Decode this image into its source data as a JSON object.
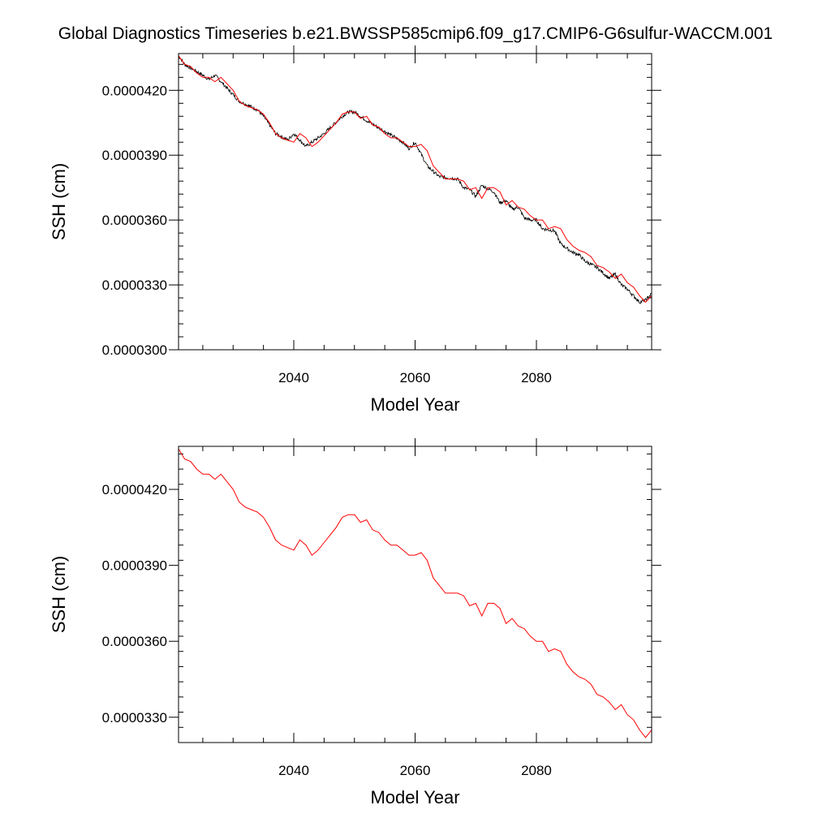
{
  "title": "Global Diagnostics Timeseries b.e21.BWSSP585cmip6.f09_g17.CMIP6-G6sulfur-WACCM.001",
  "colors": {
    "monthly_line": "#000000",
    "annual_line": "#ff0000"
  },
  "chart_data": [
    {
      "type": "line",
      "xlabel": "Model Year",
      "ylabel": "SSH (cm)",
      "xlim": [
        2021,
        2099
      ],
      "ylim": [
        3e-05,
        4.37e-05
      ],
      "xticks": [
        2040,
        2060,
        2080
      ],
      "xtick_labels": [
        "2040",
        "2060",
        "2080"
      ],
      "yticks": [
        3e-05,
        3.3e-05,
        3.6e-05,
        3.9e-05,
        4.2e-05
      ],
      "ytick_labels": [
        "0.0000300",
        "0.0000330",
        "0.0000360",
        "0.0000390",
        "0.0000420"
      ],
      "grid": false,
      "series": [
        {
          "kind": "monthly",
          "x_start": 2021,
          "x_step": 0.0833333,
          "noise_amplitude": 8e-08,
          "trend_x": [
            2021,
            2022,
            2025,
            2026,
            2027,
            2029,
            2031,
            2034,
            2035,
            2037,
            2039,
            2040,
            2042,
            2045,
            2048,
            2049,
            2050,
            2052,
            2055,
            2058,
            2059,
            2060,
            2062,
            2064,
            2067,
            2068,
            2069,
            2070,
            2071,
            2073,
            2074,
            2075,
            2076,
            2077,
            2078,
            2079,
            2080,
            2081,
            2083,
            2084,
            2085,
            2086,
            2087,
            2088,
            2090,
            2092,
            2093,
            2094,
            2095,
            2097,
            2098,
            2099
          ],
          "trend_y": [
            4.36e-05,
            4.32e-05,
            4.27e-05,
            4.25e-05,
            4.27e-05,
            4.21e-05,
            4.15e-05,
            4.11e-05,
            4.08e-05,
            4e-05,
            3.97e-05,
            4e-05,
            3.94e-05,
            4e-05,
            4.08e-05,
            4.1e-05,
            4.1e-05,
            4.06e-05,
            4.01e-05,
            3.96e-05,
            3.93e-05,
            3.96e-05,
            3.85e-05,
            3.8e-05,
            3.79e-05,
            3.75e-05,
            3.74e-05,
            3.71e-05,
            3.76e-05,
            3.73e-05,
            3.68e-05,
            3.69e-05,
            3.65e-05,
            3.66e-05,
            3.61e-05,
            3.6e-05,
            3.6e-05,
            3.56e-05,
            3.55e-05,
            3.49e-05,
            3.47e-05,
            3.45e-05,
            3.44e-05,
            3.41e-05,
            3.38e-05,
            3.33e-05,
            3.35e-05,
            3.3e-05,
            3.28e-05,
            3.22e-05,
            3.23e-05,
            3.26e-05
          ]
        },
        {
          "kind": "annual",
          "x": [
            2021,
            2022,
            2023,
            2024,
            2025,
            2026,
            2027,
            2028,
            2029,
            2030,
            2031,
            2032,
            2033,
            2034,
            2035,
            2036,
            2037,
            2038,
            2039,
            2040,
            2041,
            2042,
            2043,
            2044,
            2045,
            2046,
            2047,
            2048,
            2049,
            2050,
            2051,
            2052,
            2053,
            2054,
            2055,
            2056,
            2057,
            2058,
            2059,
            2060,
            2061,
            2062,
            2063,
            2064,
            2065,
            2066,
            2067,
            2068,
            2069,
            2070,
            2071,
            2072,
            2073,
            2074,
            2075,
            2076,
            2077,
            2078,
            2079,
            2080,
            2081,
            2082,
            2083,
            2084,
            2085,
            2086,
            2087,
            2088,
            2089,
            2090,
            2091,
            2092,
            2093,
            2094,
            2095,
            2096,
            2097,
            2098,
            2099
          ],
          "y": [
            4.36e-05,
            4.32e-05,
            4.31e-05,
            4.28e-05,
            4.26e-05,
            4.26e-05,
            4.24e-05,
            4.26e-05,
            4.23e-05,
            4.2e-05,
            4.15e-05,
            4.13e-05,
            4.12e-05,
            4.11e-05,
            4.09e-05,
            4.05e-05,
            4e-05,
            3.98e-05,
            3.97e-05,
            3.96e-05,
            4e-05,
            3.98e-05,
            3.94e-05,
            3.96e-05,
            3.99e-05,
            4.02e-05,
            4.05e-05,
            4.09e-05,
            4.1e-05,
            4.1e-05,
            4.07e-05,
            4.08e-05,
            4.04e-05,
            4.03e-05,
            4e-05,
            3.98e-05,
            3.98e-05,
            3.96e-05,
            3.94e-05,
            3.94e-05,
            3.95e-05,
            3.92e-05,
            3.85e-05,
            3.82e-05,
            3.79e-05,
            3.79e-05,
            3.79e-05,
            3.78e-05,
            3.74e-05,
            3.75e-05,
            3.7e-05,
            3.75e-05,
            3.75e-05,
            3.73e-05,
            3.67e-05,
            3.69e-05,
            3.66e-05,
            3.65e-05,
            3.62e-05,
            3.6e-05,
            3.6e-05,
            3.56e-05,
            3.57e-05,
            3.56e-05,
            3.51e-05,
            3.48e-05,
            3.46e-05,
            3.45e-05,
            3.43e-05,
            3.39e-05,
            3.38e-05,
            3.36e-05,
            3.33e-05,
            3.35e-05,
            3.31e-05,
            3.29e-05,
            3.25e-05,
            3.22e-05,
            3.25e-05
          ]
        }
      ]
    },
    {
      "type": "line",
      "xlabel": "Model Year",
      "ylabel": "SSH (cm)",
      "xlim": [
        2021,
        2099
      ],
      "ylim": [
        3.2e-05,
        4.37e-05
      ],
      "xticks": [
        2040,
        2060,
        2080
      ],
      "xtick_labels": [
        "2040",
        "2060",
        "2080"
      ],
      "yticks": [
        3.3e-05,
        3.6e-05,
        3.9e-05,
        4.2e-05
      ],
      "ytick_labels": [
        "0.0000330",
        "0.0000360",
        "0.0000390",
        "0.0000420"
      ],
      "grid": false,
      "series": [
        {
          "kind": "annual",
          "x": [
            2021,
            2022,
            2023,
            2024,
            2025,
            2026,
            2027,
            2028,
            2029,
            2030,
            2031,
            2032,
            2033,
            2034,
            2035,
            2036,
            2037,
            2038,
            2039,
            2040,
            2041,
            2042,
            2043,
            2044,
            2045,
            2046,
            2047,
            2048,
            2049,
            2050,
            2051,
            2052,
            2053,
            2054,
            2055,
            2056,
            2057,
            2058,
            2059,
            2060,
            2061,
            2062,
            2063,
            2064,
            2065,
            2066,
            2067,
            2068,
            2069,
            2070,
            2071,
            2072,
            2073,
            2074,
            2075,
            2076,
            2077,
            2078,
            2079,
            2080,
            2081,
            2082,
            2083,
            2084,
            2085,
            2086,
            2087,
            2088,
            2089,
            2090,
            2091,
            2092,
            2093,
            2094,
            2095,
            2096,
            2097,
            2098,
            2099
          ],
          "y": [
            4.36e-05,
            4.32e-05,
            4.31e-05,
            4.28e-05,
            4.26e-05,
            4.26e-05,
            4.24e-05,
            4.26e-05,
            4.23e-05,
            4.2e-05,
            4.15e-05,
            4.13e-05,
            4.12e-05,
            4.11e-05,
            4.09e-05,
            4.05e-05,
            4e-05,
            3.98e-05,
            3.97e-05,
            3.96e-05,
            4e-05,
            3.98e-05,
            3.94e-05,
            3.96e-05,
            3.99e-05,
            4.02e-05,
            4.05e-05,
            4.09e-05,
            4.1e-05,
            4.1e-05,
            4.07e-05,
            4.08e-05,
            4.04e-05,
            4.03e-05,
            4e-05,
            3.98e-05,
            3.98e-05,
            3.96e-05,
            3.94e-05,
            3.94e-05,
            3.95e-05,
            3.92e-05,
            3.85e-05,
            3.82e-05,
            3.79e-05,
            3.79e-05,
            3.79e-05,
            3.78e-05,
            3.74e-05,
            3.75e-05,
            3.7e-05,
            3.75e-05,
            3.75e-05,
            3.73e-05,
            3.67e-05,
            3.69e-05,
            3.66e-05,
            3.65e-05,
            3.62e-05,
            3.6e-05,
            3.6e-05,
            3.56e-05,
            3.57e-05,
            3.56e-05,
            3.51e-05,
            3.48e-05,
            3.46e-05,
            3.45e-05,
            3.43e-05,
            3.39e-05,
            3.38e-05,
            3.36e-05,
            3.33e-05,
            3.35e-05,
            3.31e-05,
            3.29e-05,
            3.25e-05,
            3.22e-05,
            3.25e-05
          ]
        }
      ]
    }
  ]
}
